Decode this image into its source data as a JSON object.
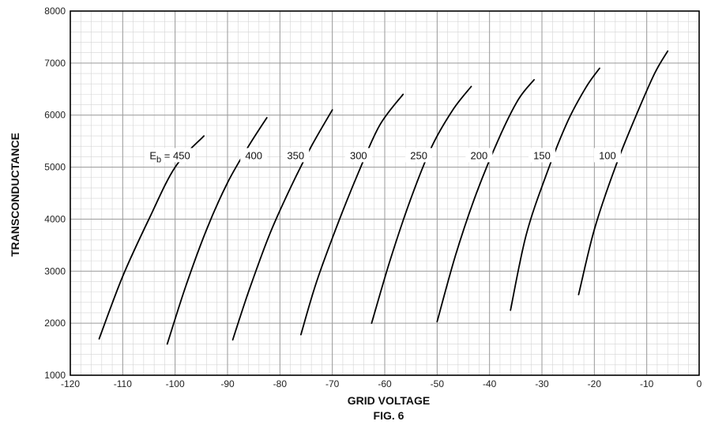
{
  "figure_label": "FIG. 6",
  "chart_data": {
    "type": "line",
    "xlabel": "GRID VOLTAGE",
    "ylabel": "TRANSCONDUCTANCE",
    "xlim": [
      -120,
      0
    ],
    "ylim": [
      1000,
      8000
    ],
    "x_ticks": [
      -120,
      -110,
      -100,
      -90,
      -80,
      -70,
      -60,
      -50,
      -40,
      -30,
      -20,
      -10,
      0
    ],
    "y_ticks": [
      1000,
      2000,
      3000,
      4000,
      5000,
      6000,
      7000,
      8000
    ],
    "grid": true,
    "minor_grid": true,
    "colors": {
      "curve": "#000000",
      "major_grid": "#9a9a9a",
      "minor_grid": "#d4d4d4"
    },
    "series": [
      {
        "name": "450",
        "label": "E_b = 450",
        "label_at": [
          -101,
          5200
        ],
        "points": [
          [
            -114.5,
            1700
          ],
          [
            -110,
            2900
          ],
          [
            -105,
            4000
          ],
          [
            -100,
            5000
          ],
          [
            -94.5,
            5600
          ]
        ]
      },
      {
        "name": "400",
        "label": "400",
        "label_at": [
          -85,
          5200
        ],
        "points": [
          [
            -101.5,
            1600
          ],
          [
            -98,
            2700
          ],
          [
            -94,
            3800
          ],
          [
            -90,
            4700
          ],
          [
            -86,
            5400
          ],
          [
            -82.5,
            5950
          ]
        ]
      },
      {
        "name": "350",
        "label": "350",
        "label_at": [
          -77,
          5200
        ],
        "points": [
          [
            -89,
            1680
          ],
          [
            -86,
            2600
          ],
          [
            -82,
            3700
          ],
          [
            -78,
            4600
          ],
          [
            -74,
            5400
          ],
          [
            -70,
            6100
          ]
        ]
      },
      {
        "name": "300",
        "label": "300",
        "label_at": [
          -65,
          5200
        ],
        "points": [
          [
            -76,
            1780
          ],
          [
            -73,
            2800
          ],
          [
            -69,
            3900
          ],
          [
            -65,
            4900
          ],
          [
            -61,
            5800
          ],
          [
            -56.5,
            6400
          ]
        ]
      },
      {
        "name": "250",
        "label": "250",
        "label_at": [
          -53.5,
          5200
        ],
        "points": [
          [
            -62.5,
            2000
          ],
          [
            -59,
            3200
          ],
          [
            -55,
            4400
          ],
          [
            -51,
            5400
          ],
          [
            -47,
            6100
          ],
          [
            -43.5,
            6550
          ]
        ]
      },
      {
        "name": "200",
        "label": "200",
        "label_at": [
          -42,
          5200
        ],
        "points": [
          [
            -50,
            2030
          ],
          [
            -46.5,
            3300
          ],
          [
            -42.5,
            4500
          ],
          [
            -38,
            5600
          ],
          [
            -34.5,
            6300
          ],
          [
            -31.5,
            6680
          ]
        ]
      },
      {
        "name": "150",
        "label": "150",
        "label_at": [
          -30,
          5200
        ],
        "points": [
          [
            -36,
            2250
          ],
          [
            -33,
            3700
          ],
          [
            -29,
            4900
          ],
          [
            -25,
            5900
          ],
          [
            -21.5,
            6550
          ],
          [
            -19,
            6900
          ]
        ]
      },
      {
        "name": "100",
        "label": "100",
        "label_at": [
          -17.5,
          5200
        ],
        "points": [
          [
            -23,
            2550
          ],
          [
            -20,
            3800
          ],
          [
            -16,
            5000
          ],
          [
            -12,
            6000
          ],
          [
            -8.5,
            6800
          ],
          [
            -6,
            7230
          ]
        ]
      }
    ]
  }
}
